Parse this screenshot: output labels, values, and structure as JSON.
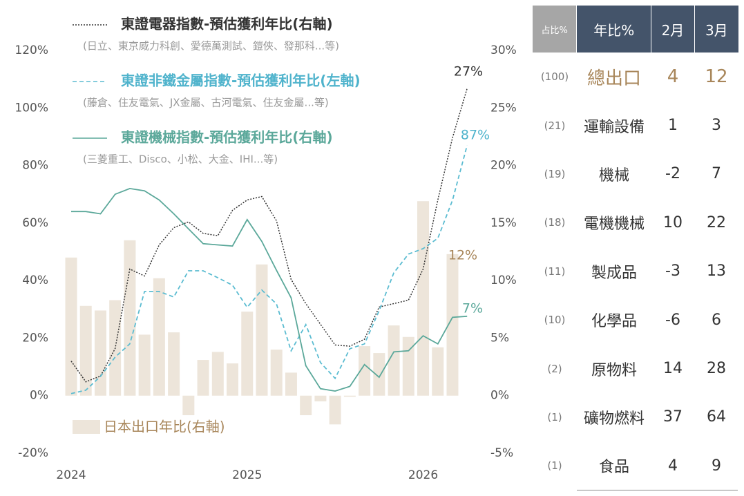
{
  "chart_data": {
    "type": "bar-line",
    "categories": [
      "2024",
      null,
      null,
      null,
      null,
      null,
      null,
      null,
      null,
      null,
      null,
      null,
      "2025",
      null,
      null,
      null,
      null,
      null,
      null,
      null,
      null,
      null,
      null,
      null,
      "2026",
      null,
      null,
      null
    ],
    "ylim": [
      -20,
      120
    ],
    "yticks": [
      {
        "value": -20,
        "label": "-20%"
      },
      {
        "value": 0,
        "label": "0%"
      },
      {
        "value": 20,
        "label": "20%"
      },
      {
        "value": 40,
        "label": "40%"
      },
      {
        "value": 60,
        "label": "60%"
      },
      {
        "value": 80,
        "label": "80%"
      },
      {
        "value": 100,
        "label": "100%"
      },
      {
        "value": 120,
        "label": "120%"
      }
    ],
    "y2lim": [
      -5,
      30
    ],
    "y2ticks": [
      {
        "value": -5,
        "label": "-5%"
      },
      {
        "value": 0,
        "label": "0%"
      },
      {
        "value": 5,
        "label": "5%"
      },
      {
        "value": 10,
        "label": "10%"
      },
      {
        "value": 15,
        "label": "15%"
      },
      {
        "value": 20,
        "label": "20%"
      },
      {
        "value": 25,
        "label": "25%"
      },
      {
        "value": 30,
        "label": "30%"
      }
    ],
    "series": [
      {
        "name": "東證電器指數-預估獲利年比(右軸)",
        "note": "(日立、東京威力科創、愛德萬測試、鎧俠、發那科...等)",
        "kind": "line",
        "dash": "dotted",
        "axis": "y2",
        "color": "#333333",
        "values": [
          3.0,
          1.2,
          1.7,
          4.1,
          11.0,
          10.4,
          13.1,
          14.6,
          15.1,
          14.1,
          13.9,
          16.1,
          17.0,
          17.3,
          15.2,
          10.1,
          8.0,
          6.2,
          4.4,
          4.3,
          4.9,
          7.7,
          8.0,
          8.3,
          11.0,
          17.0,
          22.4,
          26.7
        ]
      },
      {
        "name": "東證非鐵金屬指數-預估獲利年比(左軸)",
        "note": "(藤倉、住友電氣、JX金屬、古河電氣、住友金屬...等)",
        "kind": "line",
        "dash": "dashed",
        "axis": "y",
        "color": "#5bbcd1",
        "values": [
          0.7,
          1.9,
          6.7,
          13.4,
          18.0,
          36.2,
          36.2,
          34.3,
          43.4,
          43.4,
          41.0,
          38.4,
          30.7,
          36.7,
          31.9,
          15.6,
          24.7,
          11.5,
          6.0,
          16.3,
          18.0,
          29.5,
          42.7,
          49.2,
          51.1,
          54.7,
          67.9,
          87.0
        ]
      },
      {
        "name": "東證機械指數-預估獲利年比(右軸)",
        "note": "(三菱重工、Disco、小松、大金、IHI...等)",
        "kind": "line",
        "dash": "solid",
        "axis": "y2",
        "color": "#5ba89a",
        "values": [
          16.0,
          16.0,
          15.8,
          17.5,
          18.0,
          17.8,
          17.0,
          15.8,
          14.5,
          13.2,
          13.1,
          13.0,
          15.3,
          13.4,
          10.9,
          8.5,
          2.6,
          0.6,
          0.4,
          0.8,
          2.7,
          1.6,
          3.8,
          3.9,
          5.2,
          4.5,
          6.8,
          6.9
        ]
      },
      {
        "name": "日本出口年比(右軸)",
        "kind": "bar",
        "axis": "y2",
        "color": "#ede5da",
        "values": [
          12.0,
          7.8,
          7.4,
          8.3,
          13.5,
          5.3,
          10.2,
          5.5,
          -1.7,
          3.1,
          3.8,
          2.8,
          7.3,
          11.4,
          4.0,
          2.0,
          -1.7,
          -0.5,
          -2.5,
          -0.1,
          4.3,
          3.7,
          6.1,
          5.1,
          16.9,
          4.2,
          12.3,
          null
        ]
      }
    ],
    "annotations": [
      {
        "text": "27%",
        "color": "#333333"
      },
      {
        "text": "87%",
        "color": "#4fb3cc"
      },
      {
        "text": "12%",
        "color": "#a8865a"
      },
      {
        "text": "7%",
        "color": "#5ba89a"
      }
    ]
  },
  "table": {
    "header": [
      "占比%",
      "年比%",
      "2月",
      "3月"
    ],
    "rows": [
      [
        "(100)",
        "總出口",
        4,
        12
      ],
      [
        "(21)",
        "運輸設備",
        1,
        3
      ],
      [
        "(19)",
        "機械",
        -2,
        7
      ],
      [
        "(18)",
        "電機機械",
        10,
        22
      ],
      [
        "(11)",
        "製成品",
        -3,
        13
      ],
      [
        "(10)",
        "化學品",
        -6,
        6
      ],
      [
        "(2)",
        "原物料",
        14,
        28
      ],
      [
        "(1)",
        "礦物燃料",
        37,
        64
      ],
      [
        "(1)",
        "食品",
        4,
        9
      ]
    ]
  }
}
